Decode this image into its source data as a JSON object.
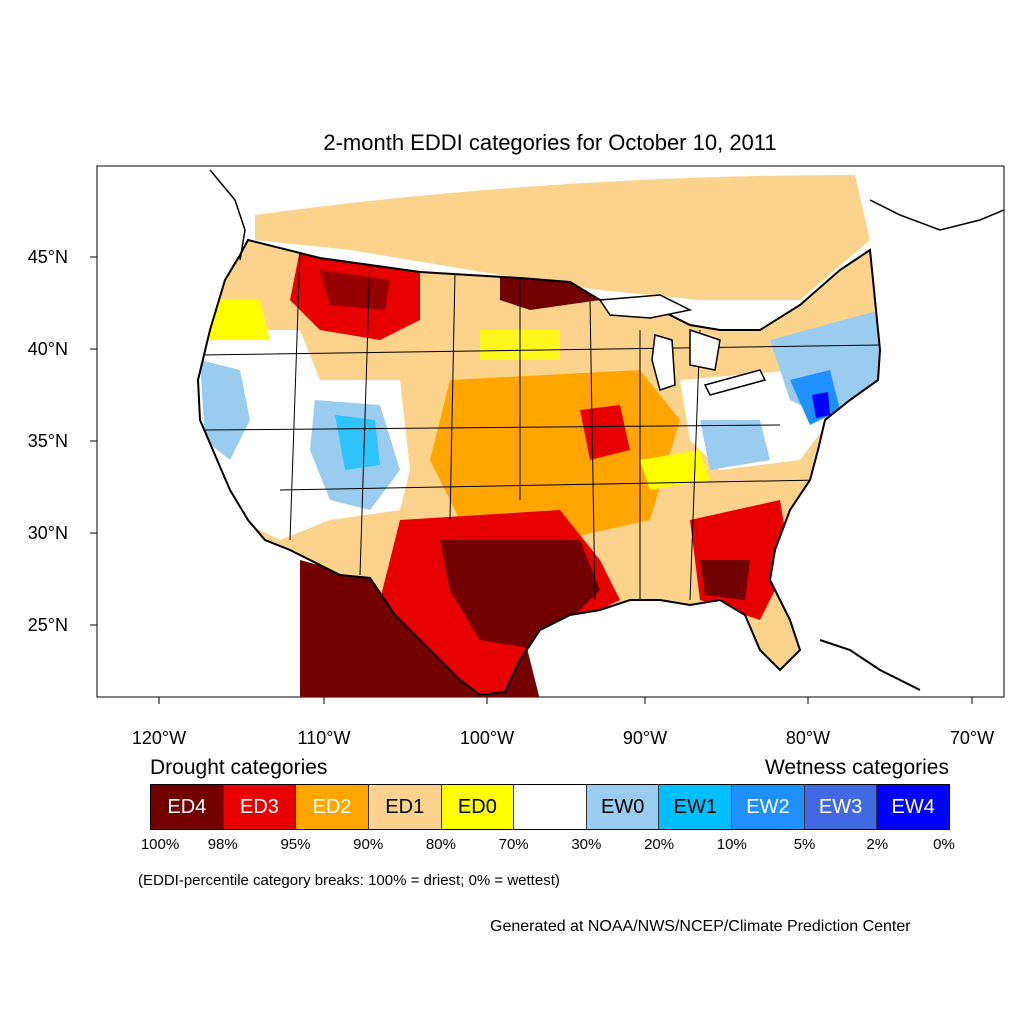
{
  "title": "2-month EDDI categories for October 10, 2011",
  "axes": {
    "lat_labels": [
      "45°N",
      "40°N",
      "35°N",
      "30°N",
      "25°N"
    ],
    "lon_labels": [
      "120°W",
      "110°W",
      "100°W",
      "90°W",
      "80°W",
      "70°W"
    ]
  },
  "legend": {
    "drought_heading": "Drought categories",
    "wetness_heading": "Wetness categories",
    "categories": [
      {
        "label": "ED4",
        "color": "#730000",
        "text_color": "#ffffff"
      },
      {
        "label": "ED3",
        "color": "#e60000",
        "text_color": "#ffffff"
      },
      {
        "label": "ED2",
        "color": "#ffa500",
        "text_color": "#ffffff"
      },
      {
        "label": "ED1",
        "color": "#fcd38c",
        "text_color": "#000000"
      },
      {
        "label": "ED0",
        "color": "#ffff00",
        "text_color": "#000000"
      },
      {
        "label": "",
        "color": "#ffffff",
        "text_color": "#000000"
      },
      {
        "label": "EW0",
        "color": "#99ccee",
        "text_color": "#000000"
      },
      {
        "label": "EW1",
        "color": "#00bfff",
        "text_color": "#000000"
      },
      {
        "label": "EW2",
        "color": "#1e90ff",
        "text_color": "#ffffff"
      },
      {
        "label": "EW3",
        "color": "#4169e1",
        "text_color": "#ffffff"
      },
      {
        "label": "EW4",
        "color": "#0000ff",
        "text_color": "#ffffff"
      }
    ],
    "breaks": [
      "100%",
      "98%",
      "95%",
      "90%",
      "80%",
      "70%",
      "30%",
      "20%",
      "10%",
      "5%",
      "2%",
      "0%"
    ]
  },
  "note": "(EDDI-percentile category breaks: 100% = driest; 0% = wettest)",
  "credit": "Generated at NOAA/NWS/NCEP/Climate Prediction Center"
}
